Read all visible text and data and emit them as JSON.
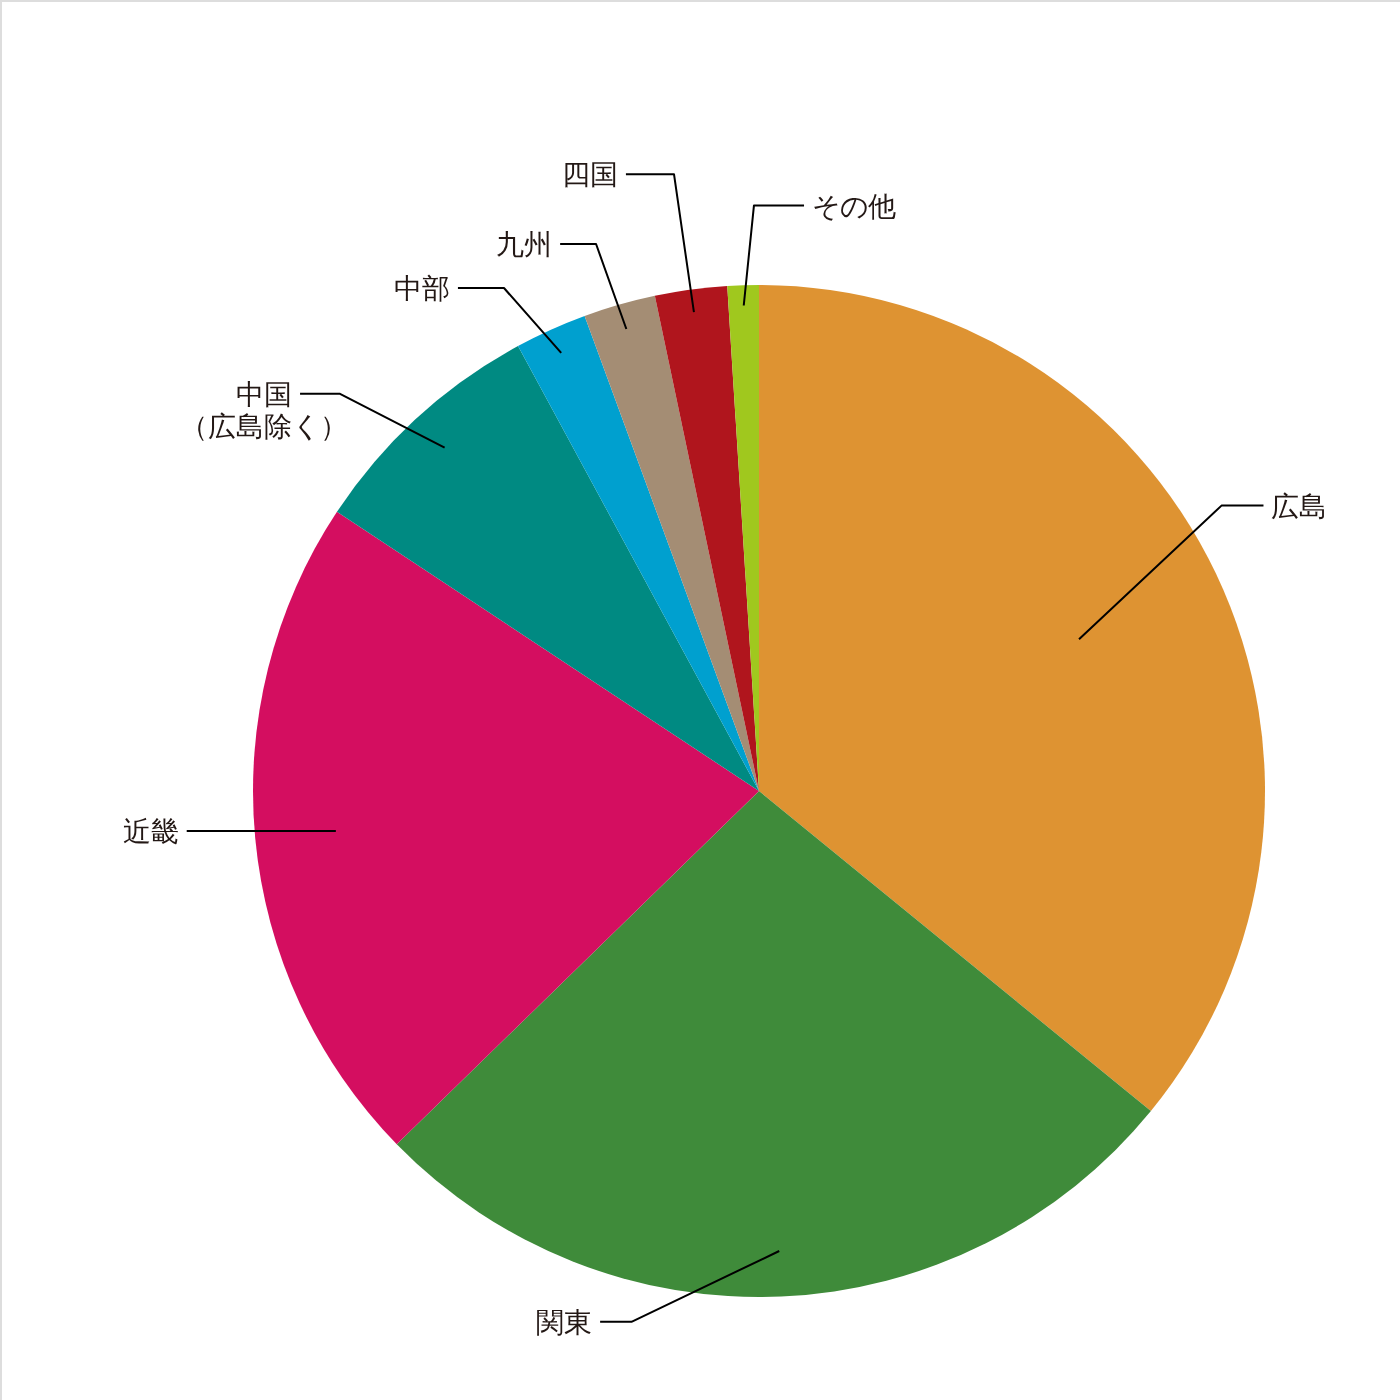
{
  "chart_data": {
    "type": "pie",
    "categories": [
      "広島",
      "関東",
      "近畿",
      "中国（広島除く）",
      "中部",
      "九州",
      "四国",
      "その他"
    ],
    "values": [
      35.9,
      26.8,
      21.6,
      7.8,
      2.3,
      2.3,
      2.3,
      1.0
    ],
    "colors": [
      "#de9332",
      "#3f8b3a",
      "#d40e60",
      "#008a82",
      "#00a0cf",
      "#a48d74",
      "#b0151d",
      "#a0c81e"
    ]
  }
}
